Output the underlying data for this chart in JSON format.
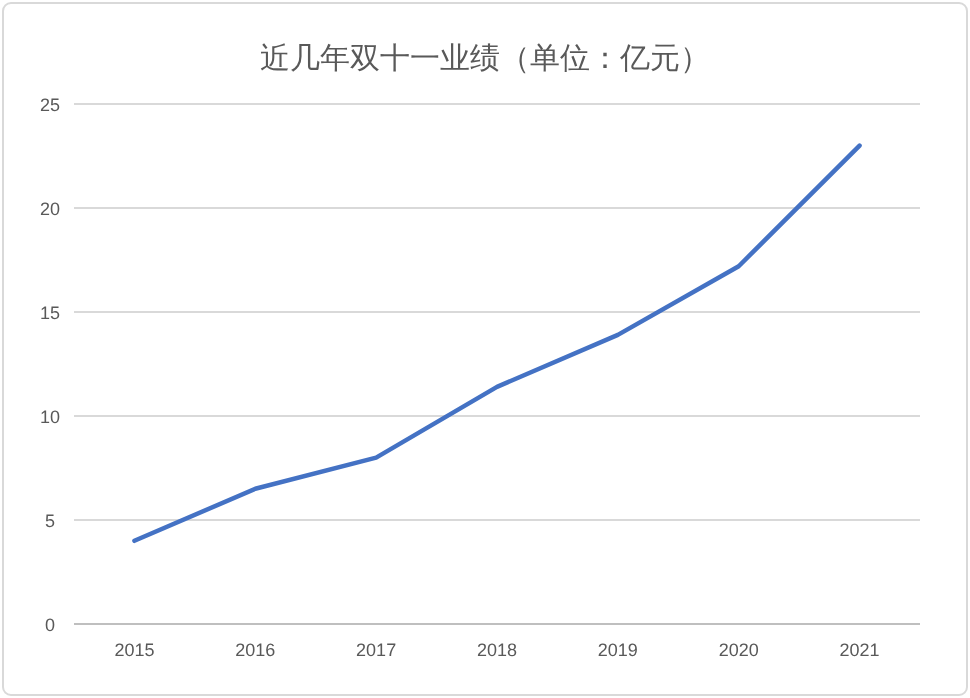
{
  "chart_data": {
    "type": "line",
    "title": "近几年双十一业绩（单位：亿元）",
    "categories": [
      "2015",
      "2016",
      "2017",
      "2018",
      "2019",
      "2020",
      "2021"
    ],
    "series": [
      {
        "color": "#4472c4",
        "values": [
          4.0,
          6.5,
          8.0,
          11.4,
          13.9,
          17.2,
          23.0
        ]
      }
    ],
    "ylim": [
      0,
      25
    ],
    "yticks": [
      0,
      5,
      10,
      15,
      20,
      25
    ],
    "grid": "y"
  }
}
